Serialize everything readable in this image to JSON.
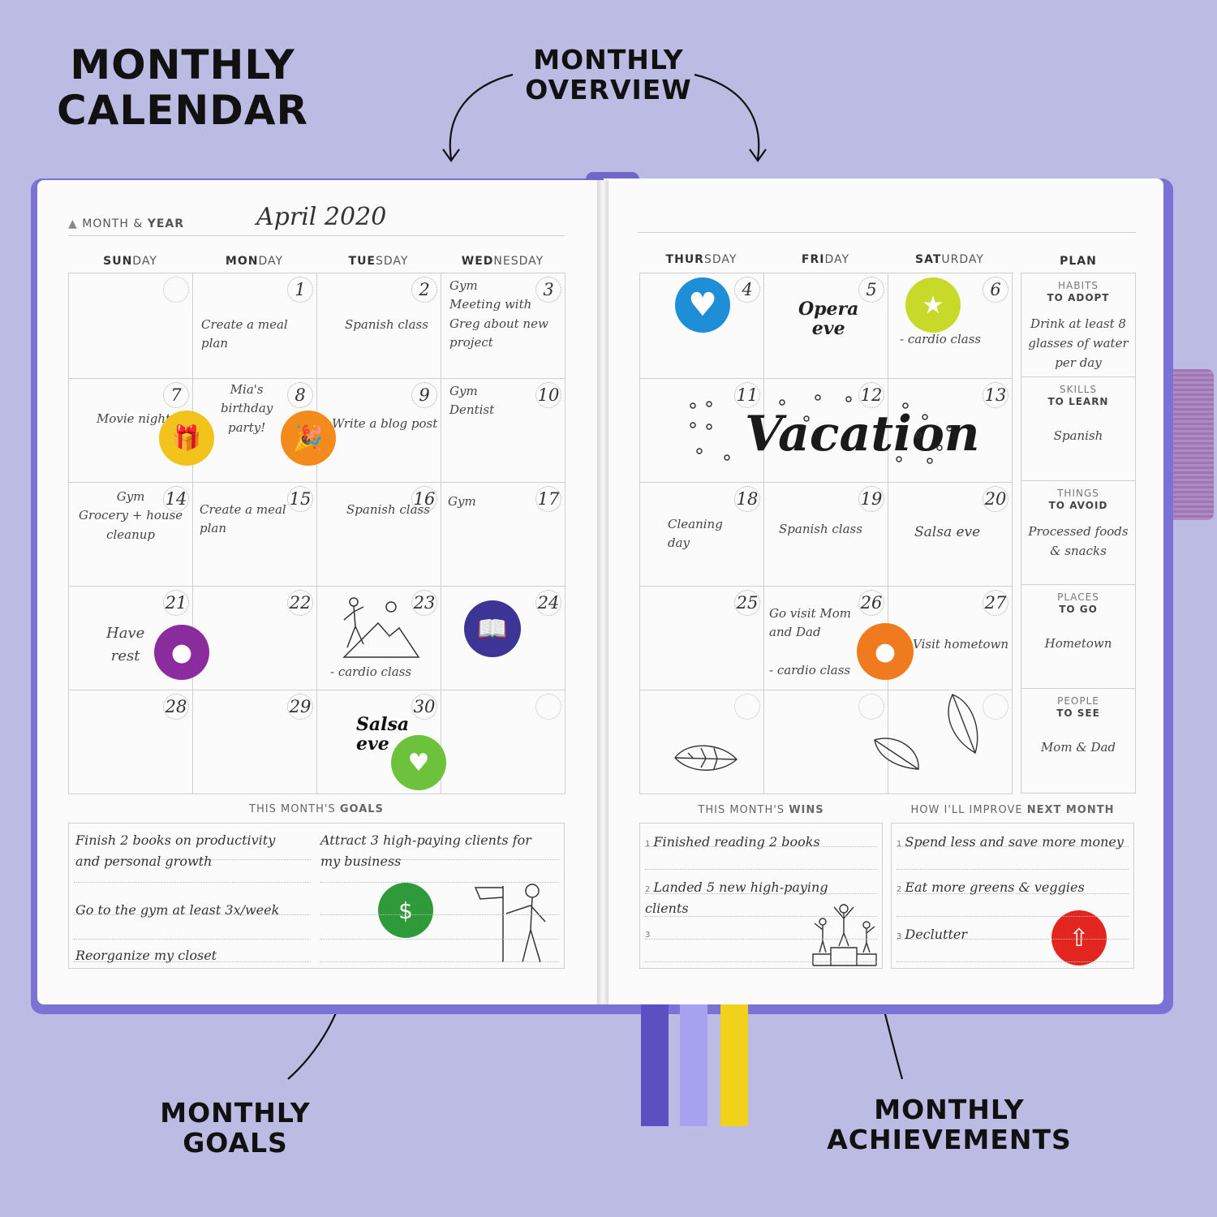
{
  "captions": {
    "title_line1": "MONTHLY",
    "title_line2": "CALENDAR",
    "overview_line1": "MONTHLY",
    "overview_line2": "OVERVIEW",
    "goals_line1": "MONTHLY",
    "goals_line2": "GOALS",
    "achievements_line1": "MONTHLY",
    "achievements_line2": "ACHIEVEMENTS"
  },
  "header": {
    "label_plain": "MONTH & ",
    "label_bold": "YEAR",
    "month": "April 2020"
  },
  "left_days": [
    {
      "bold": "SUN",
      "rest": "DAY"
    },
    {
      "bold": "MON",
      "rest": "DAY"
    },
    {
      "bold": "TUE",
      "rest": "SDAY"
    },
    {
      "bold": "WED",
      "rest": "NESDAY"
    }
  ],
  "right_days": [
    {
      "bold": "THUR",
      "rest": "SDAY"
    },
    {
      "bold": "FRI",
      "rest": "DAY"
    },
    {
      "bold": "SAT",
      "rest": "URDAY"
    }
  ],
  "plan_label": "PLAN",
  "left_cells": [
    {
      "num": "",
      "note": ""
    },
    {
      "num": "1",
      "note": "Create a meal plan"
    },
    {
      "num": "2",
      "note": "Spanish class"
    },
    {
      "num": "3",
      "note": "Gym\nMeeting with\nGreg about new\nproject"
    },
    {
      "num": "7",
      "note": "Movie night"
    },
    {
      "num": "8",
      "note": "Mia's\nbirthday\nparty!"
    },
    {
      "num": "9",
      "note": "Write a blog post"
    },
    {
      "num": "10",
      "note": "Gym\nDentist"
    },
    {
      "num": "14",
      "note": "Gym\nGrocery + house\ncleanup"
    },
    {
      "num": "15",
      "note": "Create a meal plan"
    },
    {
      "num": "16",
      "note": "Spanish class"
    },
    {
      "num": "17",
      "note": "Gym"
    },
    {
      "num": "21",
      "note": "Have\nrest"
    },
    {
      "num": "22",
      "note": ""
    },
    {
      "num": "23",
      "note": "- cardio class"
    },
    {
      "num": "24",
      "note": ""
    },
    {
      "num": "28",
      "note": ""
    },
    {
      "num": "29",
      "note": ""
    },
    {
      "num": "30",
      "note": "Salsa\neve"
    },
    {
      "num": "",
      "note": ""
    }
  ],
  "right_cells": [
    {
      "num": "4",
      "note": ""
    },
    {
      "num": "5",
      "note": "Opera\neve"
    },
    {
      "num": "6",
      "note": "- cardio class"
    },
    {
      "num": "11",
      "note": ""
    },
    {
      "num": "12",
      "note": ""
    },
    {
      "num": "13",
      "note": ""
    },
    {
      "num": "18",
      "note": "Cleaning\nday"
    },
    {
      "num": "19",
      "note": "Spanish class"
    },
    {
      "num": "20",
      "note": "Salsa eve"
    },
    {
      "num": "25",
      "note": ""
    },
    {
      "num": "26",
      "note": "Go visit Mom\nand Dad\n\n- cardio class"
    },
    {
      "num": "27",
      "note": "Visit hometown"
    },
    {
      "num": "",
      "note": ""
    },
    {
      "num": "",
      "note": ""
    },
    {
      "num": "",
      "note": ""
    }
  ],
  "vacation": "Vacation",
  "plan": [
    {
      "h1": "HABITS",
      "h2": "TO ADOPT",
      "value": "Drink at least 8\nglasses of water\nper day"
    },
    {
      "h1": "SKILLS",
      "h2": "TO LEARN",
      "value": "Spanish"
    },
    {
      "h1": "THINGS",
      "h2": "TO AVOID",
      "value": "Processed foods\n& snacks"
    },
    {
      "h1": "PLACES",
      "h2": "TO GO",
      "value": "Hometown"
    },
    {
      "h1": "PEOPLE",
      "h2": "TO SEE",
      "value": "Mom & Dad"
    }
  ],
  "goals": {
    "title_plain": "THIS MONTH'S ",
    "title_bold": "GOALS",
    "left": [
      "Finish 2 books on productivity\nand personal growth",
      "Go to the gym at least 3x/week",
      "Reorganize my closet"
    ],
    "right": [
      "Attract 3 high-paying clients for\nmy business"
    ]
  },
  "wins": {
    "title_plain": "THIS MONTH'S ",
    "title_bold": "WINS",
    "items": [
      {
        "n": "1",
        "text": "Finished reading 2 books"
      },
      {
        "n": "2",
        "text": "Landed 5 new high-paying\nclients"
      },
      {
        "n": "3",
        "text": ""
      }
    ]
  },
  "improve": {
    "title_plain": "HOW I'LL IMPROVE ",
    "title_bold": "NEXT MONTH",
    "items": [
      {
        "n": "1",
        "text": "Spend less and save more money"
      },
      {
        "n": "2",
        "text": "Eat more greens & veggies"
      },
      {
        "n": "3",
        "text": "Declutter"
      }
    ]
  },
  "colors": {
    "background": "#bbbbe3",
    "cover": "#7a72d4",
    "badge_yellow": "#f2c31a",
    "badge_orange": "#f28a1c",
    "badge_purple": "#8a2c9e",
    "badge_indigo": "#3d3595",
    "badge_green_light": "#6cc23a",
    "badge_blue": "#1e8fd6",
    "badge_lime": "#c8d92a",
    "badge_orange2": "#f07a1e",
    "badge_green": "#2f9a3a",
    "badge_red": "#e2261f",
    "ribbon_indigo": "#5a50c2",
    "ribbon_lilac": "#a7a2ef",
    "ribbon_yellow": "#f2d11a"
  },
  "icons": {
    "gift": "gift-icon",
    "party": "party-popper-icon",
    "meditation": "meditation-icon",
    "reading": "reading-icon",
    "food": "food-heart-icon",
    "heart": "heart-icon",
    "fitness": "fitness-icon",
    "family": "family-icon",
    "growth": "money-growth-icon",
    "chart": "growth-chart-icon"
  }
}
